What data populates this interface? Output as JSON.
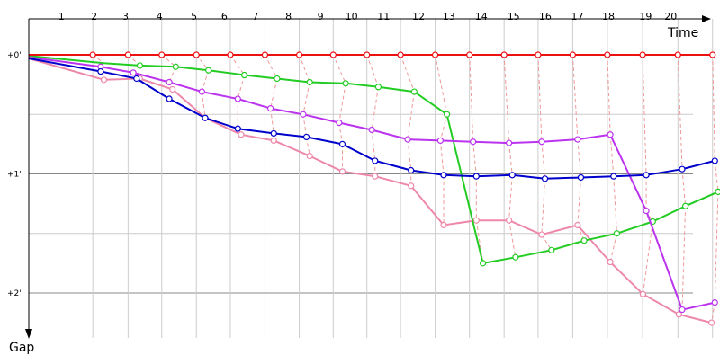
{
  "chart_data": {
    "type": "line",
    "xlabel": "Time",
    "ylabel": "Gap",
    "lap_labels": [
      "1",
      "2",
      "3",
      "4",
      "5",
      "6",
      "7",
      "8",
      "9",
      "10",
      "11",
      "12",
      "13",
      "14",
      "15",
      "16",
      "17",
      "18",
      "19",
      "20"
    ],
    "y_ticks": [
      "+0'",
      "+1'",
      "+2'"
    ],
    "y_tick_values": [
      0,
      1,
      2
    ],
    "ylim": [
      -0.0,
      2.36
    ],
    "grid": true,
    "colors": {
      "leader": "#ee1111",
      "green": "#22cc22",
      "purple": "#bb33ee",
      "blue": "#0000cc",
      "pink": "#ee88aa",
      "lap_time_line": "#ee9999",
      "major_grid": "#888888",
      "minor_grid": "#cccccc"
    },
    "series": [
      {
        "key": "leader",
        "x": [
          0,
          1.96,
          3.04,
          4.07,
          5.13,
          6.17,
          7.23,
          8.28,
          9.32,
          10.35,
          11.38,
          12.44,
          13.49,
          14.55,
          15.59,
          16.65,
          17.71,
          18.79,
          19.87,
          20.93
        ],
        "y": [
          0,
          0,
          0,
          0,
          0,
          0,
          0,
          0,
          0,
          0,
          0,
          0,
          0,
          0,
          0,
          0,
          0,
          0,
          0,
          0
        ],
        "markers": [
          false,
          true,
          true,
          true,
          true,
          true,
          true,
          true,
          true,
          true,
          true,
          true,
          true,
          true,
          true,
          true,
          true,
          true,
          true,
          true
        ]
      },
      {
        "key": "green",
        "x": [
          0,
          2.3,
          3.4,
          4.5,
          5.5,
          6.6,
          7.6,
          8.6,
          9.7,
          10.7,
          11.8,
          12.8,
          13.9,
          14.9,
          16.0,
          17.0,
          18.0,
          19.1,
          20.1,
          21.1
        ],
        "y": [
          0.01,
          0.07,
          0.09,
          0.1,
          0.13,
          0.17,
          0.2,
          0.23,
          0.24,
          0.27,
          0.31,
          0.5,
          1.75,
          1.7,
          1.64,
          1.56,
          1.5,
          1.4,
          1.27,
          1.15
        ],
        "markers": [
          false,
          false,
          true,
          true,
          true,
          true,
          true,
          true,
          true,
          true,
          true,
          true,
          true,
          true,
          true,
          true,
          true,
          true,
          true,
          true
        ]
      },
      {
        "key": "purple",
        "x": [
          0,
          2.2,
          3.2,
          4.3,
          5.3,
          6.4,
          7.4,
          8.4,
          9.5,
          10.5,
          11.6,
          12.6,
          13.6,
          14.7,
          15.7,
          16.8,
          17.8,
          18.9,
          20.0,
          21.0
        ],
        "y": [
          0.02,
          0.1,
          0.15,
          0.23,
          0.31,
          0.37,
          0.45,
          0.5,
          0.57,
          0.63,
          0.71,
          0.72,
          0.73,
          0.74,
          0.73,
          0.71,
          0.67,
          1.31,
          2.14,
          2.08
        ],
        "markers": [
          false,
          true,
          true,
          true,
          true,
          true,
          true,
          true,
          true,
          true,
          true,
          true,
          true,
          true,
          true,
          true,
          true,
          true,
          true,
          true
        ]
      },
      {
        "key": "blue",
        "x": [
          0,
          2.2,
          3.3,
          4.3,
          5.4,
          6.4,
          7.5,
          8.5,
          9.6,
          10.6,
          11.7,
          12.7,
          13.7,
          14.8,
          15.8,
          16.9,
          17.9,
          18.9,
          20.0,
          21.0
        ],
        "y": [
          0.03,
          0.14,
          0.2,
          0.37,
          0.53,
          0.62,
          0.66,
          0.69,
          0.75,
          0.89,
          0.97,
          1.01,
          1.02,
          1.01,
          1.04,
          1.03,
          1.02,
          1.01,
          0.96,
          0.89
        ],
        "markers": [
          false,
          true,
          true,
          true,
          true,
          true,
          true,
          true,
          true,
          true,
          true,
          true,
          true,
          true,
          true,
          true,
          true,
          true,
          true,
          true
        ]
      },
      {
        "key": "pink",
        "x": [
          0,
          2.3,
          3.4,
          4.4,
          5.4,
          6.5,
          7.5,
          8.6,
          9.6,
          10.6,
          11.7,
          12.7,
          13.7,
          14.7,
          15.7,
          16.8,
          17.8,
          18.8,
          19.9,
          20.9
        ],
        "y": [
          0.03,
          0.21,
          0.2,
          0.29,
          0.53,
          0.67,
          0.72,
          0.85,
          0.98,
          1.02,
          1.1,
          1.43,
          1.39,
          1.39,
          1.51,
          1.43,
          1.74,
          2.01,
          2.18,
          2.25
        ],
        "markers": [
          false,
          true,
          true,
          true,
          true,
          true,
          true,
          true,
          true,
          true,
          true,
          true,
          true,
          true,
          true,
          true,
          true,
          true,
          true,
          true
        ]
      }
    ]
  }
}
